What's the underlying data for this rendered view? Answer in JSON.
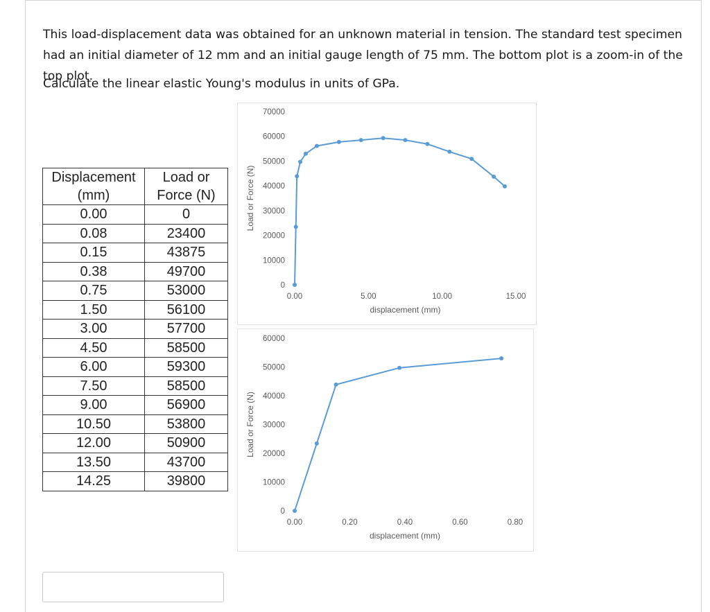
{
  "question": {
    "text": "This load-displacement data was obtained for an unknown material in tension. The standard test specimen had an initial diameter of 12 mm and an initial gauge length of 75 mm. The bottom plot is a zoom-in of the top plot.",
    "prompt": "Calculate the linear elastic Young's modulus in units of GPa."
  },
  "table": {
    "headers": [
      "Displacement (mm)",
      "Load or Force (N)"
    ],
    "header_lines": [
      [
        "Displacement",
        "(mm)"
      ],
      [
        "Load or",
        "Force (N)"
      ]
    ],
    "rows": [
      [
        "0.00",
        "0"
      ],
      [
        "0.08",
        "23400"
      ],
      [
        "0.15",
        "43875"
      ],
      [
        "0.38",
        "49700"
      ],
      [
        "0.75",
        "53000"
      ],
      [
        "1.50",
        "56100"
      ],
      [
        "3.00",
        "57700"
      ],
      [
        "4.50",
        "58500"
      ],
      [
        "6.00",
        "59300"
      ],
      [
        "7.50",
        "58500"
      ],
      [
        "9.00",
        "56900"
      ],
      [
        "10.50",
        "53800"
      ],
      [
        "12.00",
        "50900"
      ],
      [
        "13.50",
        "43700"
      ],
      [
        "14.25",
        "39800"
      ]
    ]
  },
  "chart_data": [
    {
      "type": "scatter",
      "mode": "lines+markers",
      "xlabel": "displacement (mm)",
      "ylabel": "Load or Force (N)",
      "xlim": [
        0,
        15
      ],
      "ylim": [
        0,
        70000
      ],
      "xticks": [
        "0.00",
        "5.00",
        "10.00",
        "15.00"
      ],
      "yticks": [
        "0",
        "10000",
        "20000",
        "30000",
        "40000",
        "50000",
        "60000",
        "70000"
      ],
      "x": [
        0,
        0.08,
        0.15,
        0.38,
        0.75,
        1.5,
        3,
        4.5,
        6,
        7.5,
        9,
        10.5,
        12,
        13.5,
        14.25
      ],
      "y": [
        0,
        23400,
        43875,
        49700,
        53000,
        56100,
        57700,
        58500,
        59300,
        58500,
        56900,
        53800,
        50900,
        43700,
        39800
      ],
      "color": "#5b9bd5",
      "grid": false
    },
    {
      "type": "scatter",
      "mode": "lines+markers",
      "xlabel": "displacement (mm)",
      "ylabel": "Load or Force (N)",
      "xlim": [
        0,
        0.8
      ],
      "ylim": [
        0,
        60000
      ],
      "xticks": [
        "0.00",
        "0.20",
        "0.40",
        "0.60",
        "0.80"
      ],
      "yticks": [
        "0",
        "10000",
        "20000",
        "30000",
        "40000",
        "50000",
        "60000"
      ],
      "x": [
        0,
        0.08,
        0.15,
        0.38,
        0.75
      ],
      "y": [
        0,
        23400,
        43875,
        49700,
        53000
      ],
      "color": "#5b9bd5",
      "grid": false
    }
  ]
}
